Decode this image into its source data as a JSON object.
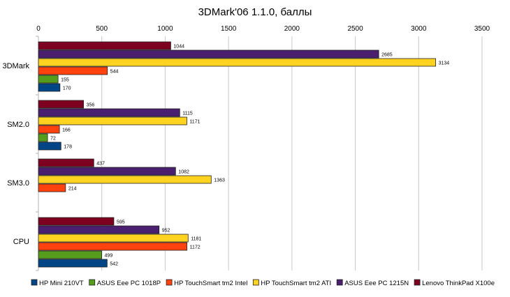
{
  "chart_data": {
    "type": "bar",
    "orientation": "horizontal",
    "title": "3DMark'06 1.1.0, баллы",
    "xlabel": "",
    "ylabel": "",
    "xlim": [
      0,
      3500
    ],
    "xticks": [
      0,
      500,
      1000,
      1500,
      2000,
      2500,
      3000,
      3500
    ],
    "grid": true,
    "legend_position": "bottom",
    "categories": [
      "3DMark",
      "SM2.0",
      "SM3.0",
      "CPU"
    ],
    "series": [
      {
        "name": "HP Mini 210VT",
        "color": "#004586",
        "values": [
          170,
          178,
          null,
          542
        ]
      },
      {
        "name": "ASUS Eee PC 1018P",
        "color": "#579d1c",
        "values": [
          155,
          72,
          null,
          499
        ]
      },
      {
        "name": "HP TouchSmart tm2 Intel",
        "color": "#ff420e",
        "values": [
          544,
          166,
          214,
          1172
        ]
      },
      {
        "name": "HP TouchSmart tm2 ATI",
        "color": "#ffd320",
        "values": [
          3134,
          1171,
          1363,
          1181
        ]
      },
      {
        "name": "ASUS Eee PC 1215N",
        "color": "#4b1f6f",
        "values": [
          2685,
          1115,
          1082,
          952
        ]
      },
      {
        "name": "Lenovo ThinkPad X100e",
        "color": "#7e0021",
        "values": [
          1044,
          356,
          437,
          595
        ]
      }
    ]
  }
}
